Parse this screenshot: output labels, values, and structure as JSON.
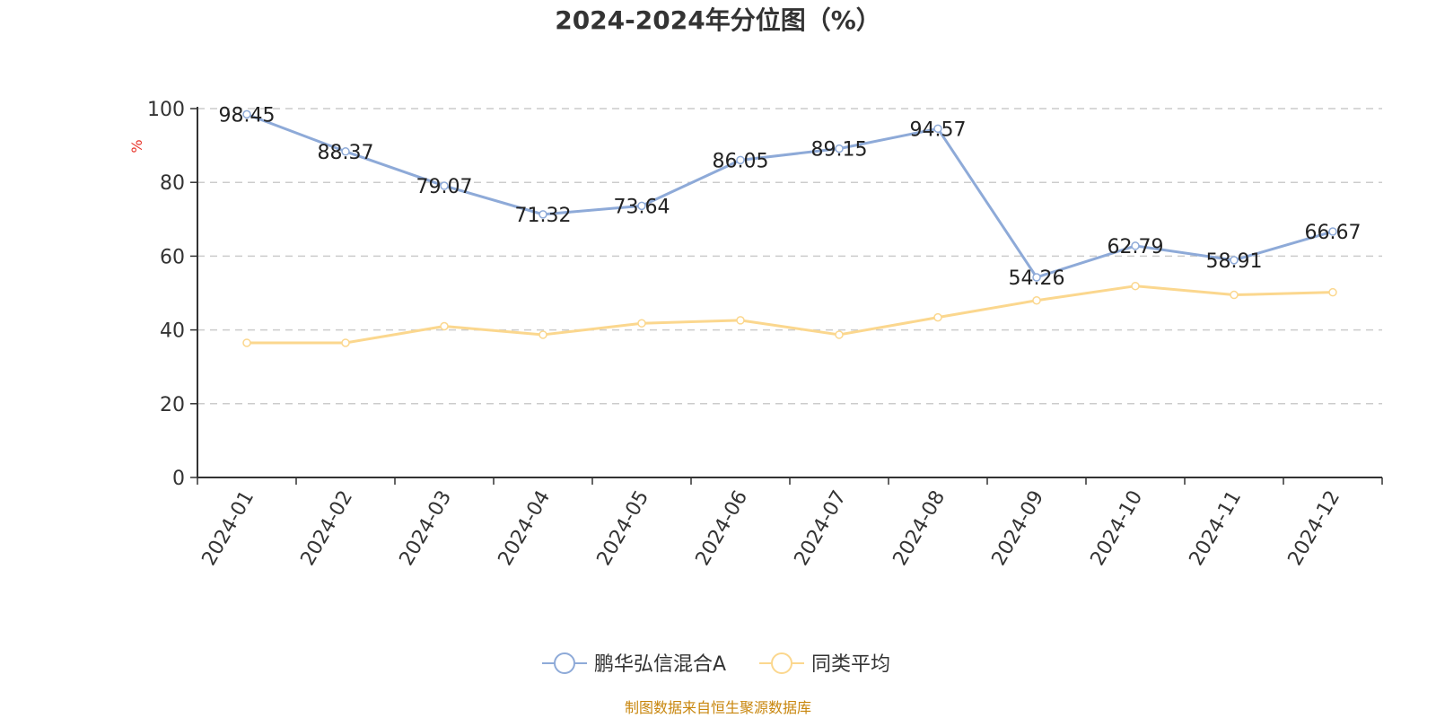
{
  "chart_data": {
    "type": "line",
    "title": "2024-2024年分位图（%）",
    "ylabel": "%",
    "xlabel": "",
    "ylim": [
      0,
      100
    ],
    "yticks": [
      0,
      20,
      40,
      60,
      80,
      100
    ],
    "categories": [
      "2024-01",
      "2024-02",
      "2024-03",
      "2024-04",
      "2024-05",
      "2024-06",
      "2024-07",
      "2024-08",
      "2024-09",
      "2024-10",
      "2024-11",
      "2024-12"
    ],
    "grid": true,
    "legend_position": "bottom",
    "series": [
      {
        "name": "鹏华弘信混合A",
        "color": "#8eaad8",
        "values": [
          98.45,
          88.37,
          79.07,
          71.32,
          73.64,
          86.05,
          89.15,
          94.57,
          54.26,
          62.79,
          58.91,
          66.67
        ],
        "labels": [
          "98.45",
          "88.37",
          "79.07",
          "71.32",
          "73.64",
          "86.05",
          "89.15",
          "94.57",
          "54.26",
          "62.79",
          "58.91",
          "66.67"
        ]
      },
      {
        "name": "同类平均",
        "color": "#fbd78e",
        "values": [
          36.5,
          36.5,
          41.0,
          38.7,
          41.8,
          42.6,
          38.7,
          43.4,
          48.0,
          51.9,
          49.5,
          50.2
        ]
      }
    ]
  },
  "source_text": "制图数据来自恒生聚源数据库",
  "colors": {
    "axis": "#333333",
    "grid": "#cccccc",
    "unit_label": "#e8352b",
    "source_text": "#c8860d"
  }
}
